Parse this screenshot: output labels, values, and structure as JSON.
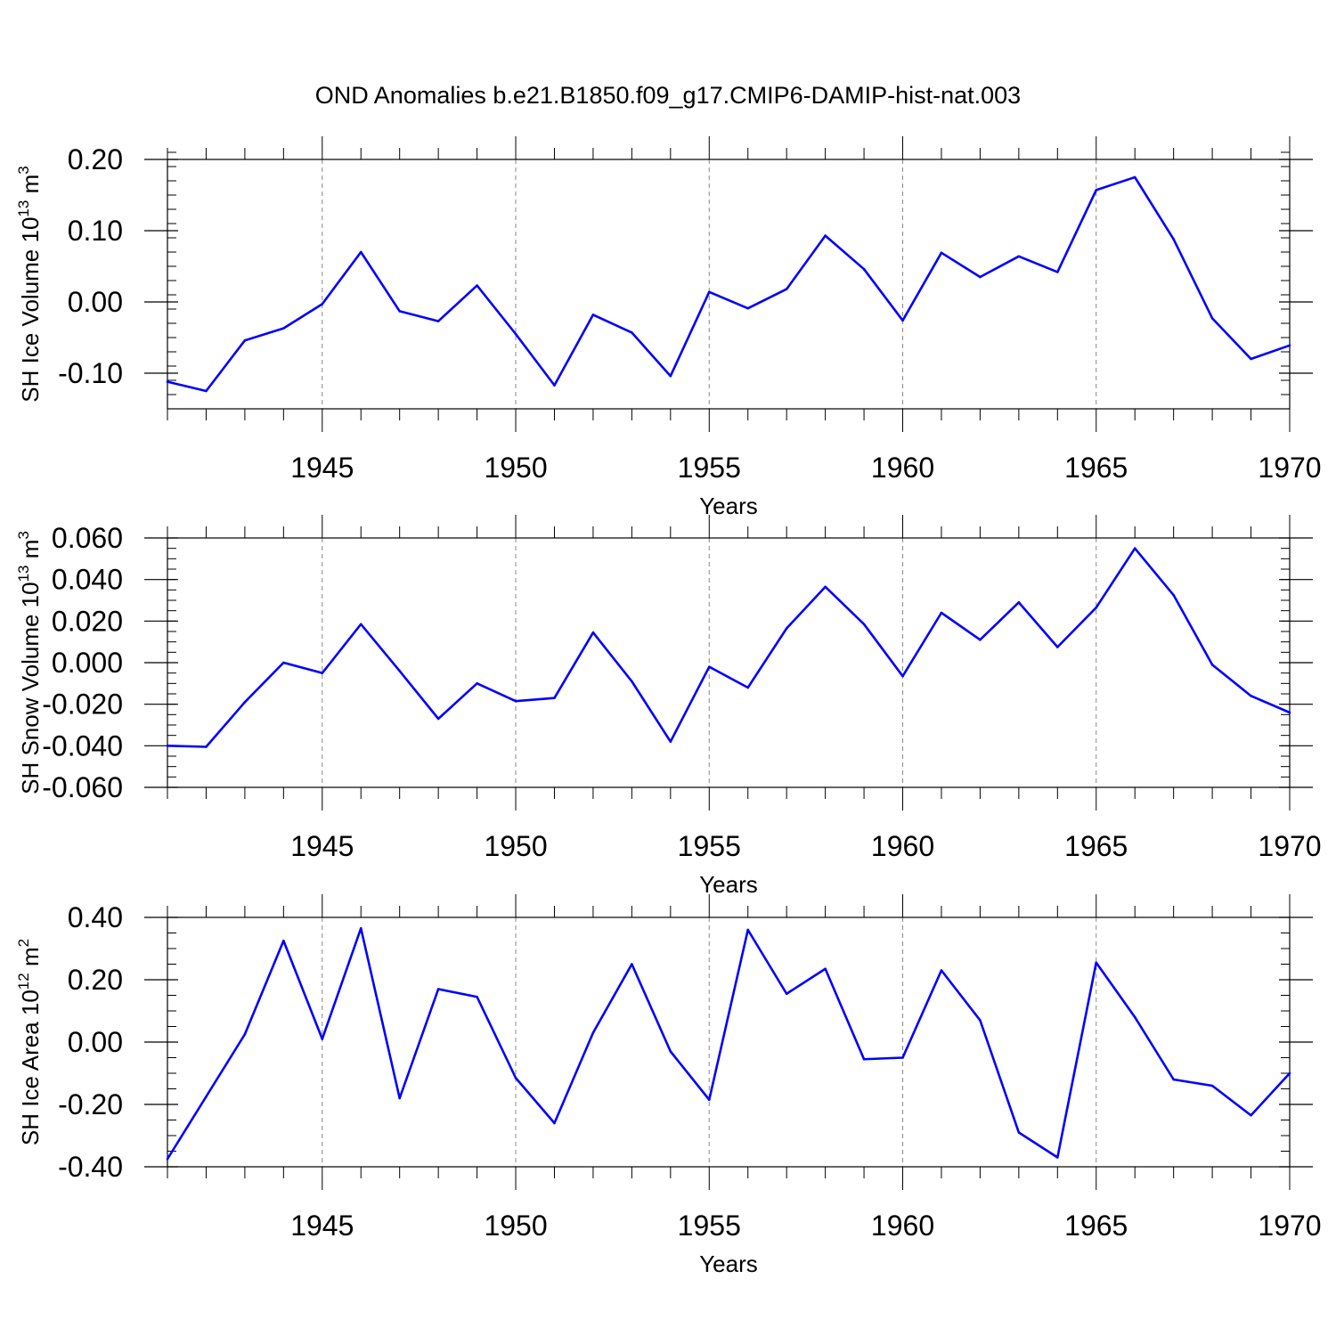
{
  "title": "OND Anomalies b.e21.B1850.f09_g17.CMIP6-DAMIP-hist-nat.003",
  "line_color": "#0000ff",
  "chart_data": [
    {
      "type": "line",
      "ylabel_main": "SH Ice Volume 10",
      "ylabel_exp": "13",
      "ylabel_unit": " m",
      "ylabel_unit_exp": "3",
      "xlabel": "Years",
      "xlim": [
        1941,
        1970
      ],
      "ylim": [
        -0.15,
        0.2
      ],
      "yticks": [
        0.2,
        0.1,
        0.0,
        -0.1
      ],
      "ytick_labels": [
        "0.20",
        "0.10",
        "0.00",
        "-0.10"
      ],
      "yminor_step": 0.02,
      "xticks": [
        1945,
        1950,
        1955,
        1960,
        1965,
        1970
      ],
      "xtick_labels": [
        "1945",
        "1950",
        "1955",
        "1960",
        "1965",
        "1970"
      ],
      "x": [
        1941,
        1942,
        1943,
        1944,
        1945,
        1946,
        1947,
        1948,
        1949,
        1950,
        1951,
        1952,
        1953,
        1954,
        1955,
        1956,
        1957,
        1958,
        1959,
        1960,
        1961,
        1962,
        1963,
        1964,
        1965,
        1966,
        1967,
        1968,
        1969,
        1970
      ],
      "values": [
        -0.112,
        -0.125,
        -0.054,
        -0.037,
        -0.003,
        0.07,
        -0.013,
        -0.027,
        0.023,
        -0.045,
        -0.117,
        -0.018,
        -0.043,
        -0.104,
        0.014,
        -0.009,
        0.018,
        0.093,
        0.046,
        -0.026,
        0.069,
        0.035,
        0.064,
        0.042,
        0.157,
        0.175,
        0.088,
        -0.023,
        -0.08,
        -0.061
      ]
    },
    {
      "type": "line",
      "ylabel_main": "SH Snow Volume 10",
      "ylabel_exp": "13",
      "ylabel_unit": " m",
      "ylabel_unit_exp": "3",
      "xlabel": "Years",
      "xlim": [
        1941,
        1970
      ],
      "ylim": [
        -0.06,
        0.06
      ],
      "yticks": [
        0.06,
        0.04,
        0.02,
        0.0,
        -0.02,
        -0.04,
        -0.06
      ],
      "ytick_labels": [
        "0.060",
        "0.040",
        "0.020",
        "0.000",
        "-0.020",
        "-0.040",
        "-0.060"
      ],
      "yminor_step": 0.005,
      "xticks": [
        1945,
        1950,
        1955,
        1960,
        1965,
        1970
      ],
      "xtick_labels": [
        "1945",
        "1950",
        "1955",
        "1960",
        "1965",
        "1970"
      ],
      "x": [
        1941,
        1942,
        1943,
        1944,
        1945,
        1946,
        1947,
        1948,
        1949,
        1950,
        1951,
        1952,
        1953,
        1954,
        1955,
        1956,
        1957,
        1958,
        1959,
        1960,
        1961,
        1962,
        1963,
        1964,
        1965,
        1966,
        1967,
        1968,
        1969,
        1970
      ],
      "values": [
        -0.04,
        -0.0405,
        -0.019,
        0.0,
        -0.005,
        0.0185,
        -0.004,
        -0.027,
        -0.01,
        -0.0185,
        -0.017,
        0.0145,
        -0.009,
        -0.038,
        -0.002,
        -0.012,
        0.0165,
        0.0365,
        0.0185,
        -0.0065,
        0.024,
        0.011,
        0.029,
        0.0075,
        0.0265,
        0.055,
        0.0325,
        -0.001,
        -0.016,
        -0.024
      ]
    },
    {
      "type": "line",
      "ylabel_main": "SH Ice Area 10",
      "ylabel_exp": "12",
      "ylabel_unit": " m",
      "ylabel_unit_exp": "2",
      "xlabel": "Years",
      "xlim": [
        1941,
        1970
      ],
      "ylim": [
        -0.4,
        0.4
      ],
      "yticks": [
        0.4,
        0.2,
        0.0,
        -0.2,
        -0.4
      ],
      "ytick_labels": [
        "0.40",
        "0.20",
        "0.00",
        "-0.20",
        "-0.40"
      ],
      "yminor_step": 0.05,
      "xticks": [
        1945,
        1950,
        1955,
        1960,
        1965,
        1970
      ],
      "xtick_labels": [
        "1945",
        "1950",
        "1955",
        "1960",
        "1965",
        "1970"
      ],
      "x": [
        1941,
        1942,
        1943,
        1944,
        1945,
        1946,
        1947,
        1948,
        1949,
        1950,
        1951,
        1952,
        1953,
        1954,
        1955,
        1956,
        1957,
        1958,
        1959,
        1960,
        1961,
        1962,
        1963,
        1964,
        1965,
        1966,
        1967,
        1968,
        1969,
        1970
      ],
      "values": [
        -0.375,
        -0.175,
        0.025,
        0.325,
        0.01,
        0.365,
        -0.18,
        0.17,
        0.145,
        -0.115,
        -0.26,
        0.03,
        0.25,
        -0.03,
        -0.185,
        0.36,
        0.155,
        0.235,
        -0.055,
        -0.05,
        0.23,
        0.07,
        -0.29,
        -0.37,
        0.255,
        0.08,
        -0.12,
        -0.14,
        -0.235,
        -0.1
      ]
    }
  ]
}
